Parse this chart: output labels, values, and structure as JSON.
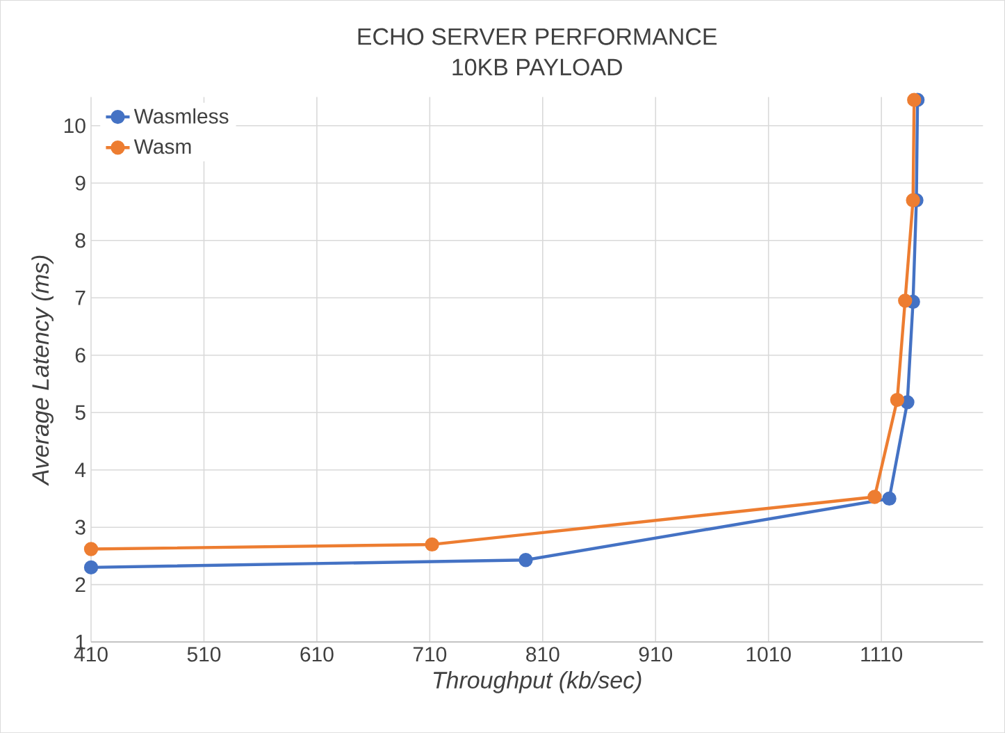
{
  "chart_data": {
    "type": "line",
    "title": "ECHO SERVER PERFORMANCE",
    "subtitle": "10KB PAYLOAD",
    "xlabel": "Throughput (kb/sec)",
    "ylabel": "Average Latency (ms)",
    "xlim": [
      410,
      1200
    ],
    "xticks": [
      410,
      510,
      610,
      710,
      810,
      910,
      1010,
      1110
    ],
    "ylim": [
      1,
      10.5
    ],
    "yticks": [
      1,
      2,
      3,
      4,
      5,
      6,
      7,
      8,
      9,
      10
    ],
    "grid": true,
    "legend": "top left",
    "marker": "circle",
    "line_style": "solid",
    "series": [
      {
        "name": "Wasmless",
        "color": "#4472c4",
        "x": [
          410,
          795,
          1117,
          1133,
          1138,
          1141,
          1142
        ],
        "values": [
          2.3,
          2.43,
          3.5,
          5.18,
          6.93,
          8.7,
          10.45
        ]
      },
      {
        "name": "Wasm",
        "color": "#ed7d31",
        "x": [
          410,
          712,
          1104,
          1124,
          1131,
          1138,
          1139
        ],
        "values": [
          2.62,
          2.7,
          3.53,
          5.22,
          6.95,
          8.7,
          10.45
        ]
      }
    ]
  }
}
